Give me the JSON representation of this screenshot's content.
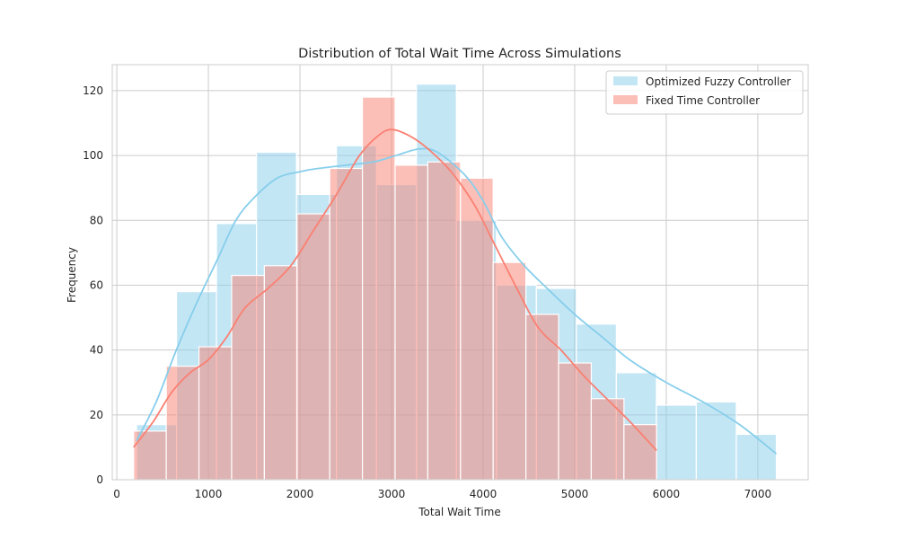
{
  "chart_data": {
    "type": "histogram",
    "title": "Distribution of Total Wait Time Across Simulations",
    "xlabel": "Total Wait Time",
    "ylabel": "Frequency",
    "xlim": [
      -50,
      7550
    ],
    "ylim": [
      0,
      128
    ],
    "xticks": [
      0,
      1000,
      2000,
      3000,
      4000,
      5000,
      6000,
      7000
    ],
    "yticks": [
      0,
      20,
      40,
      60,
      80,
      100,
      120
    ],
    "grid": true,
    "legend_position": "top-right",
    "series": [
      {
        "name": "Optimized Fuzzy Controller",
        "color": "#87CEEB",
        "bin_edges": [
          215,
          652,
          1088,
          1525,
          1962,
          2398,
          2835,
          3272,
          3708,
          4145,
          4582,
          5018,
          5455,
          5892,
          6328,
          6765,
          7202
        ],
        "counts": [
          17,
          58,
          79,
          101,
          88,
          103,
          91,
          122,
          80,
          60,
          59,
          48,
          33,
          23,
          24,
          14
        ],
        "kde": {
          "x": [
            215,
            430,
            650,
            880,
            1100,
            1300,
            1500,
            1750,
            2000,
            2200,
            2500,
            2800,
            3050,
            3300,
            3500,
            3800,
            4000,
            4200,
            4450,
            4700,
            5000,
            5300,
            5600,
            6000,
            6400,
            6800,
            7202
          ],
          "y": [
            12,
            24,
            40,
            55,
            68,
            80,
            87,
            93,
            95,
            96,
            97,
            98,
            100,
            102,
            101,
            94,
            86,
            75,
            66,
            59,
            51,
            44,
            37,
            30,
            24,
            17,
            8
          ]
        }
      },
      {
        "name": "Fixed Time Controller",
        "color": "#FA8072",
        "bin_edges": [
          183,
          540,
          897,
          1254,
          1611,
          1968,
          2325,
          2682,
          3039,
          3396,
          3753,
          4110,
          4467,
          4824,
          5181,
          5538,
          5895
        ],
        "counts": [
          15,
          35,
          41,
          63,
          66,
          82,
          96,
          118,
          97,
          98,
          93,
          67,
          51,
          36,
          25,
          17
        ],
        "kde": {
          "x": [
            183,
            400,
            600,
            800,
            1000,
            1200,
            1400,
            1650,
            1900,
            2150,
            2400,
            2650,
            2850,
            3000,
            3200,
            3400,
            3650,
            3900,
            4100,
            4350,
            4600,
            4850,
            5100,
            5350,
            5600,
            5895
          ],
          "y": [
            10,
            18,
            27,
            33,
            37,
            44,
            53,
            59,
            66,
            77,
            88,
            100,
            106,
            108,
            106,
            102,
            95,
            85,
            74,
            60,
            47,
            40,
            32,
            25,
            18,
            9
          ]
        }
      }
    ]
  }
}
